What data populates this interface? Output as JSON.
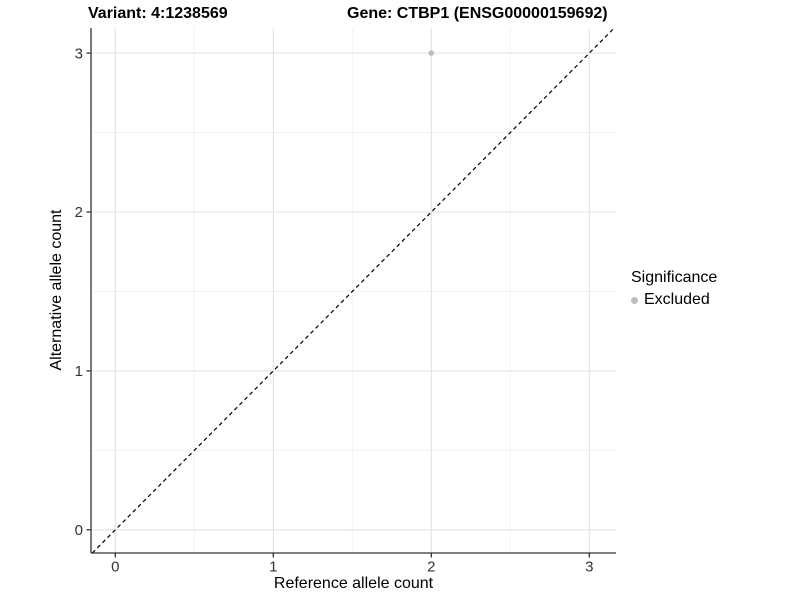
{
  "titles": {
    "variant": "Variant: 4:1238569",
    "gene": "Gene: CTBP1 (ENSG00000159692)"
  },
  "axes": {
    "x_label": "Reference allele count",
    "y_label": "Alternative allele count"
  },
  "legend": {
    "title": "Significance",
    "items": [
      {
        "label": "Excluded",
        "color": "#bdbdbd",
        "marker": "circle-icon"
      }
    ]
  },
  "colors": {
    "background": "#ffffff",
    "axis_line": "#333333",
    "tick_text": "#333333",
    "title_text": "#000000",
    "grid_major": "#e3e3e3",
    "grid_minor": "#f0f0f0",
    "point": "#bdbdbd",
    "identity_line": "#000000"
  },
  "chart_data": {
    "type": "scatter",
    "title": "Variant: 4:1238569 — Gene: CTBP1 (ENSG00000159692)",
    "xlabel": "Reference allele count",
    "ylabel": "Alternative allele count",
    "xlim": [
      -0.154,
      3.169
    ],
    "ylim": [
      -0.146,
      3.158
    ],
    "xticks": [
      0,
      1,
      2,
      3
    ],
    "yticks": [
      0,
      1,
      2,
      3
    ],
    "minor_gridlines_x": [
      0.5,
      1.5,
      2.5
    ],
    "minor_gridlines_y": [
      0.5,
      1.5,
      2.5
    ],
    "grid": "major+minor",
    "legend_position": "right",
    "legend_title": "Significance",
    "series": [
      {
        "name": "Excluded",
        "color": "#bdbdbd",
        "points": [
          {
            "x": 2,
            "y": 3
          }
        ]
      }
    ],
    "reference_line": {
      "type": "identity y=x",
      "style": "dashed",
      "color": "#000000"
    }
  }
}
